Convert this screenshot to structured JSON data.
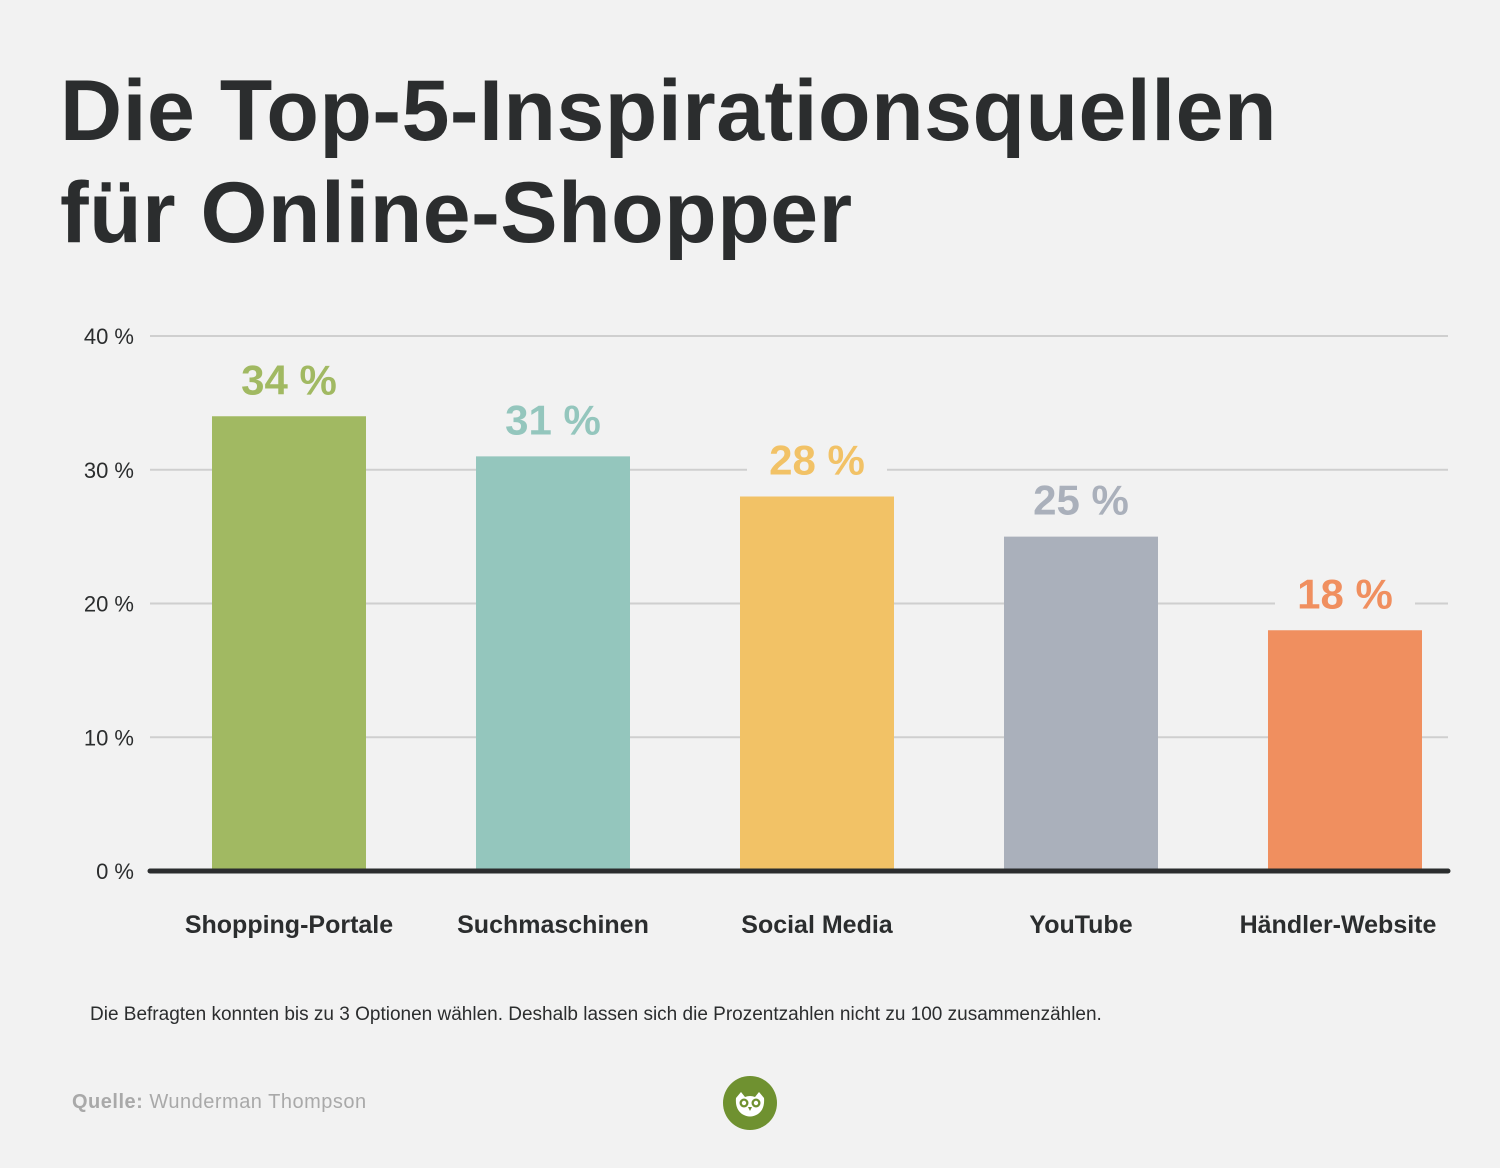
{
  "title": {
    "line1": "Die Top-5-Inspirationsquellen",
    "line2": "für Online-Shopper"
  },
  "chart_data": {
    "type": "bar",
    "categories": [
      "Shopping-Portale",
      "Suchmaschinen",
      "Social Media",
      "YouTube",
      "Händler-Website"
    ],
    "values": [
      34,
      31,
      28,
      25,
      18
    ],
    "value_labels": [
      "34 %",
      "31 %",
      "28 %",
      "25 %",
      "18 %"
    ],
    "colors": [
      "#a1b962",
      "#94c6bd",
      "#f2c266",
      "#aab0bb",
      "#f08f5f"
    ],
    "yticks": [
      0,
      10,
      20,
      30,
      40
    ],
    "ytick_labels": [
      "0 %",
      "10 %",
      "20 %",
      "30 %",
      "40 %"
    ],
    "ylim": [
      0,
      40
    ],
    "grid": true
  },
  "footnote": "Die Befragten konnten bis zu 3 Optionen wählen. Deshalb lassen sich die Prozentzahlen nicht zu 100 zusammenzählen.",
  "source": {
    "label": "Quelle:",
    "value": "Wunderman Thompson"
  },
  "logo": {
    "icon": "owl-icon",
    "color": "#6f9130"
  }
}
